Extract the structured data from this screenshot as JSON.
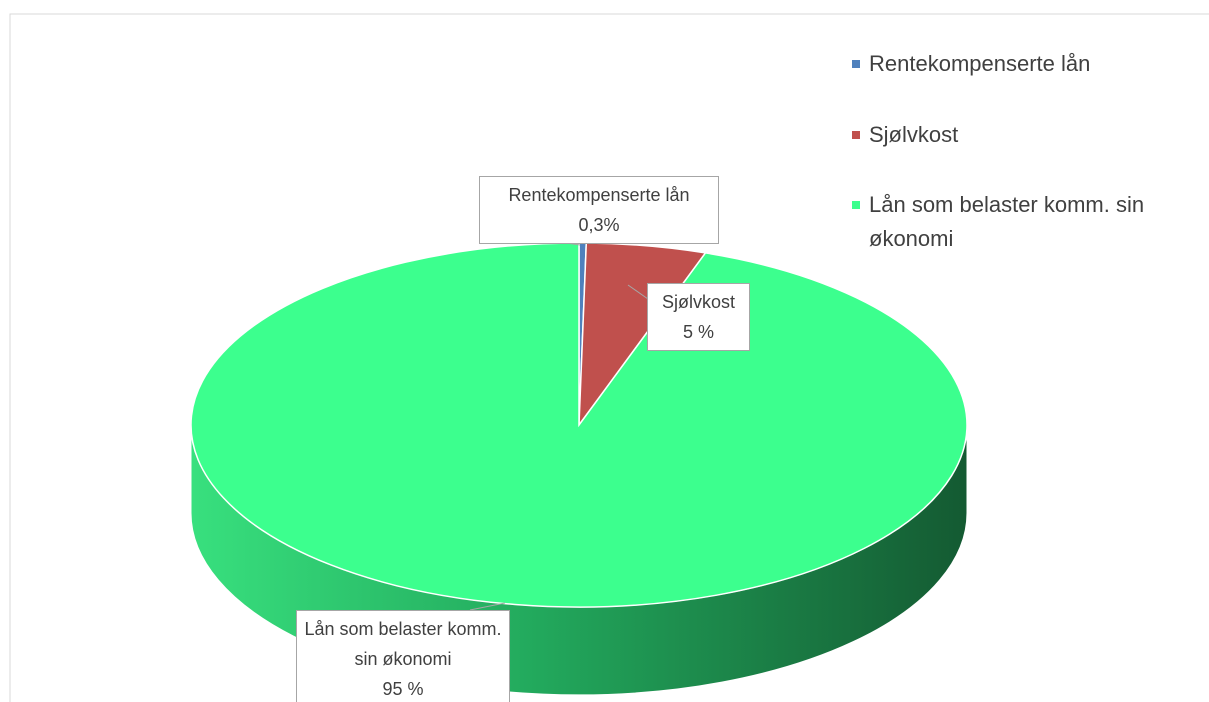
{
  "chart_data": {
    "type": "pie",
    "categories": [
      "Rentekompenserte lån",
      "Sjølvkost",
      "Lån som belaster komm. sin økonomi"
    ],
    "series": [
      {
        "values": [
          0.3,
          5,
          95
        ],
        "value_labels": [
          "0,3%",
          "5 %",
          "95 %"
        ]
      }
    ],
    "colors": [
      "#4f81bd",
      "#c0504d",
      "#3cff8e"
    ],
    "legend": "right",
    "style": "3d"
  }
}
